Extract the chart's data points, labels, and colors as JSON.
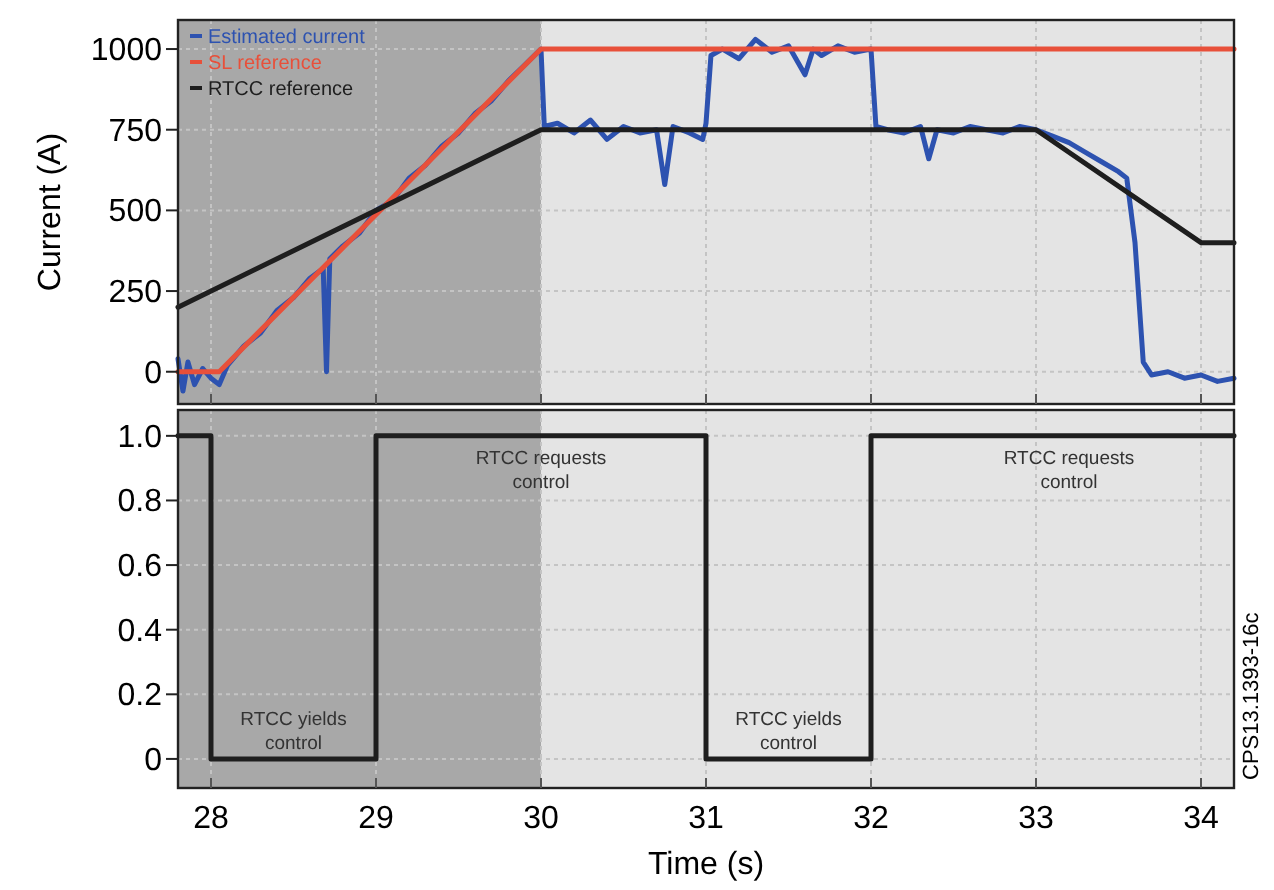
{
  "chart_data": [
    {
      "type": "line",
      "ylabel": "Current (A)",
      "xlim": [
        27.8,
        34.2
      ],
      "xticks": [
        28,
        29,
        30,
        31,
        32,
        33,
        34
      ],
      "ylim": [
        -100,
        1090
      ],
      "yticks": [
        0,
        250,
        500,
        750,
        1000
      ],
      "grid": true,
      "legend": "top left",
      "tick_labels": "y",
      "bands": [
        {
          "axis": "x",
          "from": 27.8,
          "to": 30,
          "color": "#a8a8a8"
        }
      ],
      "series": [
        {
          "name": "Estimated current",
          "color": "#2d52b0",
          "x": [
            27.8,
            27.83,
            27.86,
            27.9,
            27.95,
            28.0,
            28.05,
            28.1,
            28.2,
            28.3,
            28.4,
            28.5,
            28.6,
            28.68,
            28.7,
            28.72,
            28.8,
            28.9,
            29.0,
            29.1,
            29.2,
            29.3,
            29.4,
            29.5,
            29.6,
            29.7,
            29.8,
            29.9,
            30.0,
            30.02,
            30.1,
            30.2,
            30.3,
            30.4,
            30.5,
            30.6,
            30.7,
            30.75,
            30.8,
            30.9,
            30.98,
            31.0,
            31.03,
            31.1,
            31.2,
            31.3,
            31.4,
            31.5,
            31.6,
            31.65,
            31.7,
            31.8,
            31.9,
            32.0,
            32.03,
            32.1,
            32.2,
            32.3,
            32.35,
            32.4,
            32.5,
            32.6,
            32.7,
            32.8,
            32.9,
            33.0,
            33.1,
            33.2,
            33.3,
            33.4,
            33.5,
            33.55,
            33.6,
            33.65,
            33.7,
            33.8,
            33.9,
            34.0,
            34.1,
            34.2
          ],
          "values": [
            40,
            -60,
            30,
            -40,
            10,
            -20,
            -40,
            20,
            80,
            120,
            190,
            230,
            290,
            320,
            0,
            350,
            390,
            430,
            500,
            530,
            600,
            640,
            700,
            740,
            800,
            840,
            900,
            950,
            1000,
            760,
            770,
            740,
            780,
            720,
            760,
            740,
            750,
            580,
            760,
            740,
            720,
            770,
            980,
            1000,
            970,
            1030,
            990,
            1010,
            920,
            1000,
            980,
            1010,
            990,
            1000,
            760,
            750,
            740,
            760,
            660,
            750,
            740,
            760,
            750,
            740,
            760,
            750,
            730,
            710,
            680,
            650,
            620,
            600,
            400,
            30,
            -10,
            0,
            -20,
            -10,
            -30,
            -20
          ]
        },
        {
          "name": "SL reference",
          "color": "#e8503a",
          "x": [
            27.8,
            28.05,
            30,
            34.2
          ],
          "values": [
            0,
            0,
            1000,
            1000
          ]
        },
        {
          "name": "RTCC reference",
          "color": "#1e1e1e",
          "x": [
            27.8,
            30,
            33,
            34,
            34.2
          ],
          "values": [
            200,
            750,
            750,
            400,
            400
          ]
        }
      ]
    },
    {
      "type": "line",
      "xlabel": "Time (s)",
      "xlim": [
        27.8,
        34.2
      ],
      "xticks": [
        28,
        29,
        30,
        31,
        32,
        33,
        34
      ],
      "ylim": [
        -0.09,
        1.08
      ],
      "yticks": [
        {
          "value": 0,
          "label": "0"
        },
        {
          "value": 0.2,
          "label": "0.2"
        },
        {
          "value": 0.4,
          "label": "0.4"
        },
        {
          "value": 0.6,
          "label": "0.6"
        },
        {
          "value": 0.8,
          "label": "0.8"
        },
        {
          "value": 1,
          "label": "1.0"
        }
      ],
      "grid": true,
      "bands": [
        {
          "axis": "x",
          "from": 27.8,
          "to": 30,
          "color": "#a8a8a8"
        }
      ],
      "series": [
        {
          "color": "#1e1e1e",
          "x": [
            27.8,
            28,
            28,
            29,
            29,
            31,
            31,
            32,
            32,
            34.2
          ],
          "values": [
            1,
            1,
            0,
            0,
            1,
            1,
            0,
            0,
            1,
            1
          ]
        }
      ],
      "annotations": [
        {
          "text": "RTCC yields control",
          "x": 28.5,
          "y": 0
        },
        {
          "text": "RTCC requests control",
          "x": 30,
          "y": 1
        },
        {
          "text": "RTCC yields control",
          "x": 31.5,
          "y": 0
        },
        {
          "text": "RTCC requests control",
          "x": 33.2,
          "y": 1
        },
        "CPS13.1393-16c"
      ]
    }
  ]
}
